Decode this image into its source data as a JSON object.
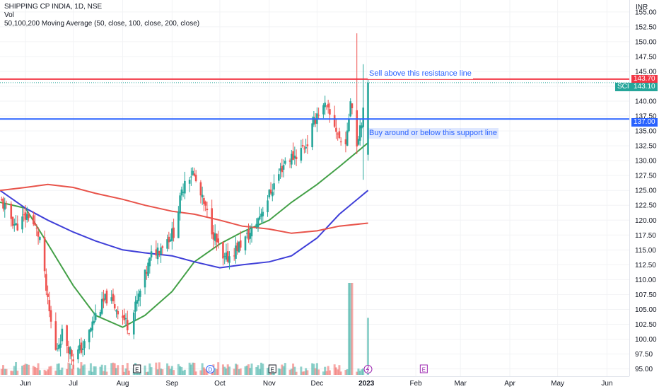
{
  "legend": {
    "symbol_line": "SHIPPING CP INDIA, 1D, NSE",
    "volume_label": "Vol",
    "ma_label": "50,100,200 Moving Average (50, close, 100, close, 200, close)"
  },
  "price_axis": {
    "currency": "INR",
    "ticks": [
      "155.00",
      "152.50",
      "150.00",
      "147.50",
      "145.00",
      "142.50",
      "140.00",
      "137.50",
      "135.00",
      "132.50",
      "130.00",
      "127.50",
      "125.00",
      "122.50",
      "120.00",
      "117.50",
      "115.00",
      "112.50",
      "110.00",
      "107.50",
      "105.00",
      "102.50",
      "100.00",
      "97.50",
      "95.00"
    ]
  },
  "time_axis": {
    "ticks": [
      "Jun",
      "Jul",
      "Aug",
      "Sep",
      "Oct",
      "Nov",
      "Dec",
      "2023",
      "Feb",
      "Mar",
      "Apr",
      "May",
      "Jun"
    ]
  },
  "price_tags": {
    "resistance": "143.70",
    "symbol": "SCI",
    "last": "143.10",
    "support": "137.00"
  },
  "annotations": {
    "resistance_note": "Sell above this resistance line",
    "support_note": "Buy around or below this support line"
  },
  "events": [
    {
      "label": "E",
      "month": "Aug"
    },
    {
      "label": "D",
      "month": "Sep"
    },
    {
      "label": "E",
      "month": "Nov"
    },
    {
      "label": "E",
      "month": "Feb"
    }
  ],
  "colors": {
    "up": "#26a69a",
    "down": "#ef5350",
    "resistance": "#f23645",
    "support": "#2962ff",
    "ma50": "#43a047",
    "ma100": "#3f3fd8",
    "ma200": "#e8534a"
  },
  "chart_data": {
    "type": "candlestick",
    "title": "SHIPPING CP INDIA, 1D, NSE",
    "ylim": [
      94,
      157
    ],
    "y_unit": "INR",
    "x_range": [
      "2022-05-16",
      "2023-06-15"
    ],
    "horizontal_lines": [
      {
        "name": "resistance",
        "value": 143.7
      },
      {
        "name": "support",
        "value": 137.0
      }
    ],
    "last_price": 143.1,
    "close_anchors": [
      [
        "2022-05-17",
        123
      ],
      [
        "2022-05-26",
        119
      ],
      [
        "2022-06-03",
        121
      ],
      [
        "2022-06-10",
        117
      ],
      [
        "2022-06-15",
        106
      ],
      [
        "2022-06-20",
        98
      ],
      [
        "2022-06-24",
        101
      ],
      [
        "2022-07-01",
        97
      ],
      [
        "2022-07-08",
        99
      ],
      [
        "2022-07-15",
        104
      ],
      [
        "2022-07-22",
        107
      ],
      [
        "2022-07-29",
        105
      ],
      [
        "2022-08-05",
        102
      ],
      [
        "2022-08-12",
        108
      ],
      [
        "2022-08-19",
        114
      ],
      [
        "2022-08-26",
        116
      ],
      [
        "2022-09-02",
        118
      ],
      [
        "2022-09-09",
        127
      ],
      [
        "2022-09-14",
        128
      ],
      [
        "2022-09-19",
        124
      ],
      [
        "2022-09-23",
        121
      ],
      [
        "2022-09-28",
        117
      ],
      [
        "2022-10-03",
        113
      ],
      [
        "2022-10-07",
        114
      ],
      [
        "2022-10-14",
        116
      ],
      [
        "2022-10-21",
        118
      ],
      [
        "2022-10-28",
        122
      ],
      [
        "2022-11-04",
        126
      ],
      [
        "2022-11-11",
        130
      ],
      [
        "2022-11-18",
        131
      ],
      [
        "2022-11-25",
        133
      ],
      [
        "2022-12-01",
        138
      ],
      [
        "2022-12-06",
        139
      ],
      [
        "2022-12-12",
        136
      ],
      [
        "2022-12-16",
        133
      ],
      [
        "2022-12-20",
        134
      ],
      [
        "2022-12-22",
        141
      ],
      [
        "2022-12-26",
        133
      ],
      [
        "2022-12-28",
        136
      ],
      [
        "2022-12-30",
        138
      ],
      [
        "2023-01-02",
        143.1
      ]
    ],
    "moving_averages": [
      {
        "name": "MA 50",
        "points": [
          [
            "2022-05-16",
            123
          ],
          [
            "2022-06-01",
            122
          ],
          [
            "2022-06-15",
            116
          ],
          [
            "2022-07-01",
            109
          ],
          [
            "2022-07-15",
            104
          ],
          [
            "2022-08-01",
            102
          ],
          [
            "2022-08-15",
            104
          ],
          [
            "2022-09-01",
            108
          ],
          [
            "2022-09-15",
            113
          ],
          [
            "2022-10-01",
            116
          ],
          [
            "2022-10-15",
            118
          ],
          [
            "2022-11-01",
            120
          ],
          [
            "2022-11-15",
            123
          ],
          [
            "2022-12-01",
            126
          ],
          [
            "2022-12-15",
            129
          ],
          [
            "2023-01-02",
            133
          ]
        ]
      },
      {
        "name": "MA 100",
        "points": [
          [
            "2022-05-16",
            125
          ],
          [
            "2022-06-01",
            122
          ],
          [
            "2022-06-15",
            120
          ],
          [
            "2022-07-01",
            118
          ],
          [
            "2022-07-15",
            116.5
          ],
          [
            "2022-08-01",
            115
          ],
          [
            "2022-08-15",
            114.5
          ],
          [
            "2022-09-01",
            114
          ],
          [
            "2022-09-15",
            113
          ],
          [
            "2022-10-01",
            112
          ],
          [
            "2022-10-15",
            112.5
          ],
          [
            "2022-11-01",
            113
          ],
          [
            "2022-11-15",
            114
          ],
          [
            "2022-12-01",
            117
          ],
          [
            "2022-12-15",
            121
          ],
          [
            "2023-01-02",
            125
          ]
        ]
      },
      {
        "name": "MA 200",
        "points": [
          [
            "2022-05-16",
            125
          ],
          [
            "2022-06-01",
            125.5
          ],
          [
            "2022-06-15",
            126
          ],
          [
            "2022-07-01",
            125.5
          ],
          [
            "2022-07-15",
            124.5
          ],
          [
            "2022-08-01",
            123.5
          ],
          [
            "2022-08-15",
            122.5
          ],
          [
            "2022-09-01",
            121.5
          ],
          [
            "2022-09-15",
            121
          ],
          [
            "2022-10-01",
            120
          ],
          [
            "2022-10-15",
            119
          ],
          [
            "2022-11-01",
            118.5
          ],
          [
            "2022-11-15",
            117.8
          ],
          [
            "2022-12-01",
            118.2
          ],
          [
            "2022-12-15",
            119
          ],
          [
            "2023-01-02",
            119.5
          ]
        ]
      }
    ],
    "volume_spikes": [
      {
        "date": "2022-12-22",
        "relative": 1.0
      },
      {
        "date": "2023-01-02",
        "relative": 0.62
      }
    ]
  }
}
